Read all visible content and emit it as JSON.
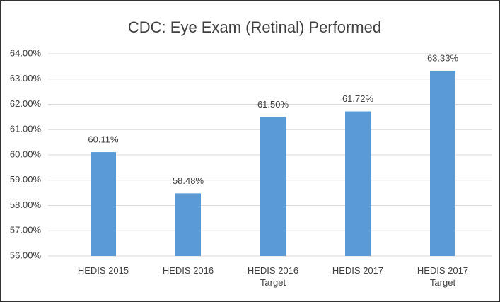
{
  "chart_data": {
    "type": "bar",
    "title": "CDC: Eye Exam (Retinal) Performed",
    "categories": [
      "HEDIS 2015",
      "HEDIS 2016",
      "HEDIS 2016 Target",
      "HEDIS 2017",
      "HEDIS 2017 Target"
    ],
    "values": [
      60.11,
      58.48,
      61.5,
      61.72,
      63.33
    ],
    "value_labels": [
      "60.11%",
      "58.48%",
      "61.50%",
      "61.72%",
      "63.33%"
    ],
    "color": "#5b9bd5",
    "ylim": [
      56,
      64
    ],
    "yticks": [
      {
        "value": 56,
        "label": "56.00%"
      },
      {
        "value": 57,
        "label": "57.00%"
      },
      {
        "value": 58,
        "label": "58.00%"
      },
      {
        "value": 59,
        "label": "59.00%"
      },
      {
        "value": 60,
        "label": "60.00%"
      },
      {
        "value": 61,
        "label": "61.00%"
      },
      {
        "value": 62,
        "label": "62.00%"
      },
      {
        "value": 63,
        "label": "63.00%"
      },
      {
        "value": 64,
        "label": "64.00%"
      }
    ],
    "grid": true
  }
}
